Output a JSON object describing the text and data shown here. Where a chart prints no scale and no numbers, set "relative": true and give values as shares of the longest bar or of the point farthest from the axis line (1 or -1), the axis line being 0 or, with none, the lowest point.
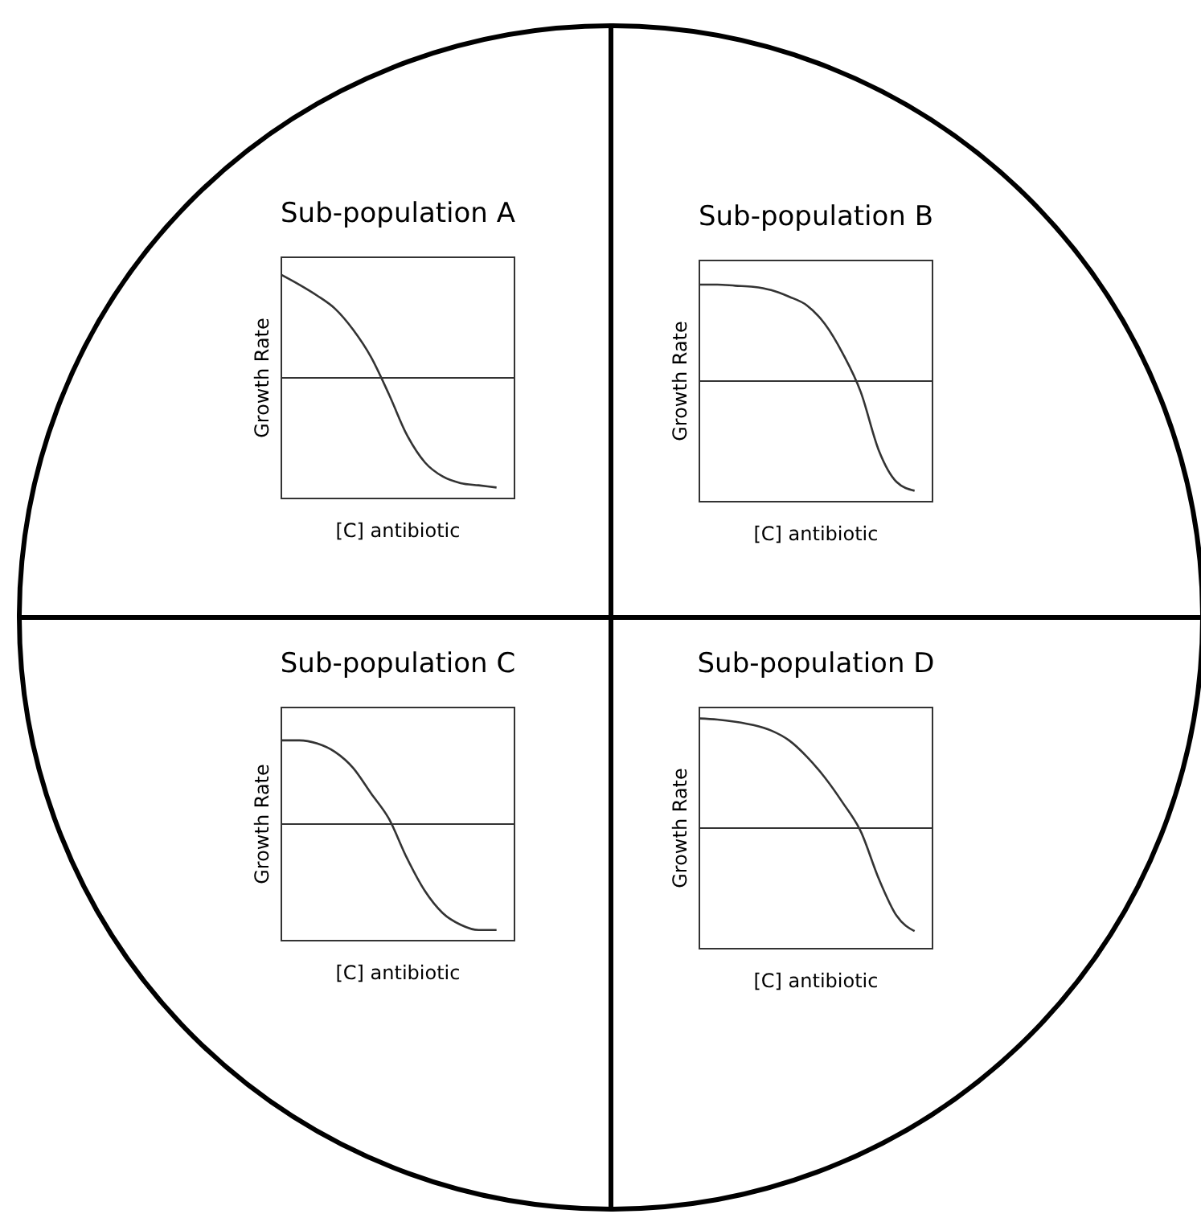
{
  "chart_data": [
    {
      "type": "line",
      "title": "Sub-population A",
      "xlabel": "[C] antibiotic",
      "ylabel": "Growth Rate",
      "relative": true,
      "color": "#333333",
      "categories": [
        null,
        null,
        null,
        null,
        null,
        null,
        null,
        null,
        null,
        null,
        null,
        null,
        null,
        null
      ],
      "values": [
        0.94,
        0.85,
        0.75,
        0.63,
        0.44,
        0.19,
        -0.15,
        -0.52,
        -0.77,
        -0.9,
        -0.96,
        -0.98,
        -1,
        null
      ]
    },
    {
      "type": "line",
      "title": "Sub-population B",
      "xlabel": "[C] antibiotic",
      "ylabel": "Growth Rate",
      "relative": true,
      "color": "#333333",
      "categories": [
        null,
        null,
        null,
        null,
        null,
        null,
        null,
        null,
        null,
        null,
        null,
        null,
        null,
        null
      ],
      "values": [
        0.88,
        0.88,
        0.87,
        0.86,
        0.83,
        0.77,
        0.69,
        0.52,
        0.25,
        -0.1,
        -0.63,
        -0.92,
        -1,
        null
      ]
    },
    {
      "type": "line",
      "title": "Sub-population C",
      "xlabel": "[C] antibiotic",
      "ylabel": "Growth Rate",
      "relative": true,
      "color": "#333333",
      "categories": [
        null,
        null,
        null,
        null,
        null,
        null,
        null,
        null,
        null,
        null,
        null,
        null,
        null,
        null
      ],
      "values": [
        0.79,
        0.79,
        0.76,
        0.68,
        0.53,
        0.29,
        0.05,
        -0.32,
        -0.63,
        -0.84,
        -0.95,
        -1,
        -1,
        null
      ]
    },
    {
      "type": "line",
      "title": "Sub-population D",
      "xlabel": "[C] antibiotic",
      "ylabel": "Growth Rate",
      "relative": true,
      "color": "#333333",
      "categories": [
        null,
        null,
        null,
        null,
        null,
        null,
        null,
        null,
        null,
        null,
        null,
        null,
        null,
        null
      ],
      "values": [
        1,
        0.99,
        0.97,
        0.94,
        0.89,
        0.8,
        0.65,
        0.46,
        0.23,
        -0.03,
        -0.46,
        -0.8,
        -0.94,
        null
      ]
    }
  ]
}
